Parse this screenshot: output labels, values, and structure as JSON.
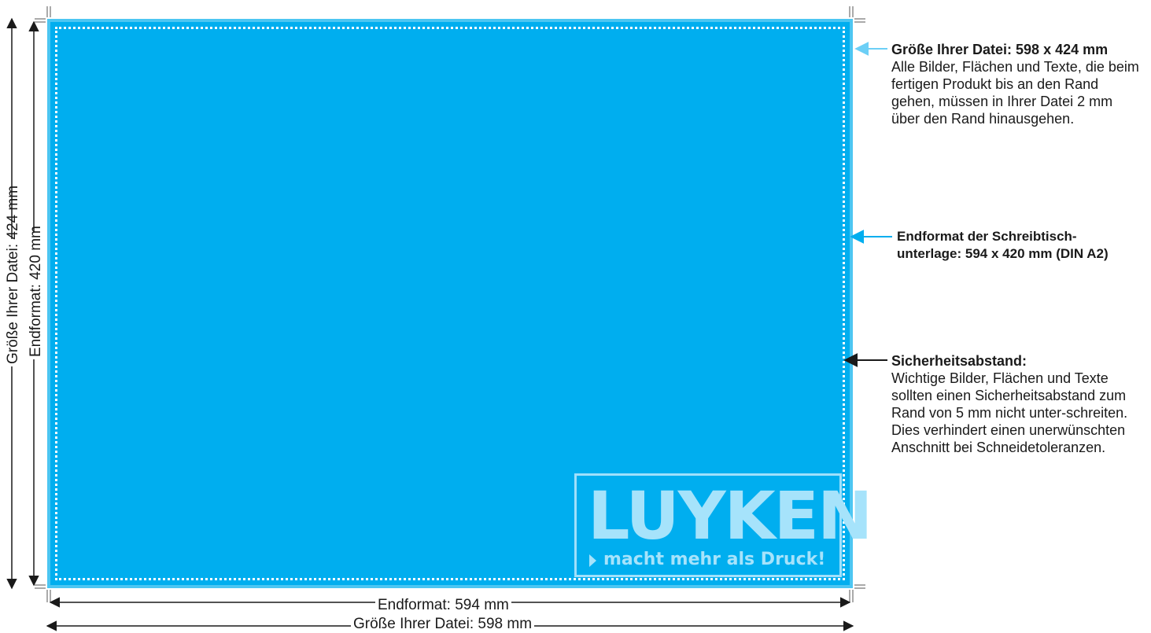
{
  "document": {
    "logo": {
      "wordmark": "LUYKEN",
      "tagline": "macht mehr als Druck!"
    },
    "annotations": {
      "file_size": {
        "title": "Größe Ihrer Datei: 598 x 424 mm",
        "body": "Alle Bilder, Flächen und Texte, die beim fertigen Produkt bis an den Rand gehen, müssen in Ihrer Datei 2 mm über den Rand hinausgehen."
      },
      "final_format": {
        "line1": "Endformat der Schreibtisch-",
        "line2": "unterlage: 594 x 420 mm (DIN A2)"
      },
      "safety_margin": {
        "title": "Sicherheitsabstand:",
        "body": "Wichtige Bilder, Flächen und Texte sollten einen Sicherheitsabstand zum Rand von 5 mm nicht unter-schreiten. Dies verhindert einen unerwünschten Anschnitt bei Schneidetoleranzen."
      }
    },
    "dimensions": {
      "width_trim": "Endformat: 594 mm",
      "width_file": "Größe Ihrer Datei: 598 mm",
      "height_file": "Größe Ihrer Datei: 424 mm",
      "height_trim": "Endformat: 420 mm"
    },
    "colors": {
      "trim_fill": "#00aeef",
      "bleed_fill": "#4cc6f2",
      "arrow_file": "#6ccff6",
      "arrow_trim": "#00aeef",
      "arrow_safety": "#1a1a1a"
    }
  }
}
